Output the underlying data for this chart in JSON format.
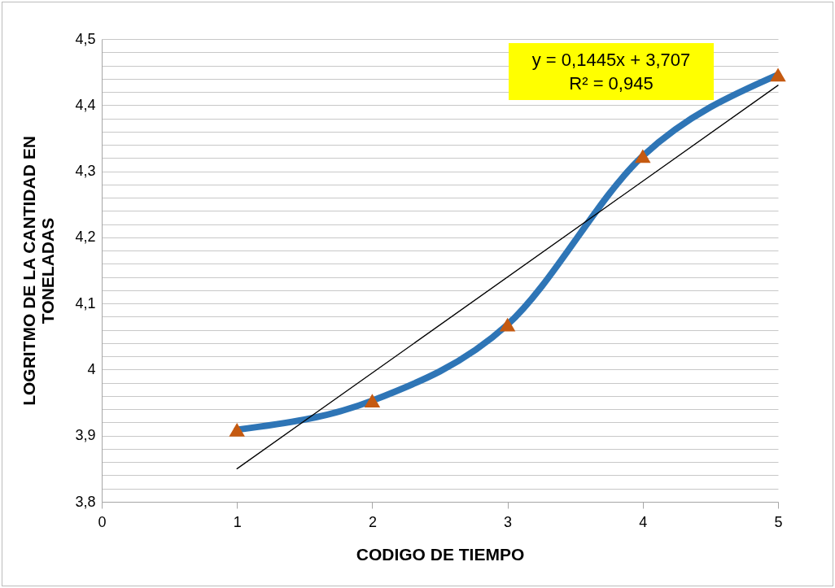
{
  "chart_data": {
    "type": "line",
    "xlabel": "CODIGO DE TIEMPO",
    "ylabel": "LOGRITMO DE LA CANTIDAD EN TONELADAS",
    "x": [
      1,
      2,
      3,
      4,
      5
    ],
    "series": [
      {
        "color": "#2e75b6",
        "values": [
          3.909,
          3.953,
          4.068,
          4.323,
          4.446
        ],
        "marker": "none"
      },
      {
        "type": "scatter",
        "color": "#c55a11",
        "values": [
          3.909,
          3.953,
          4.068,
          4.323,
          4.446
        ],
        "marker": "triangle"
      },
      {
        "type": "line",
        "color": "#000000",
        "x": [
          1,
          5
        ],
        "values": [
          3.85,
          4.43
        ],
        "marker": "none"
      }
    ],
    "annotations": [
      "y = 0,1445x + 3,707",
      "R² = 0,945"
    ],
    "xlim": [
      0,
      5
    ],
    "xticks": [
      0,
      1,
      2,
      3,
      4,
      5
    ],
    "ylim": [
      3.8,
      4.5
    ],
    "yticks": [
      {
        "value": 3.8,
        "label": "3,8"
      },
      {
        "value": 3.82,
        "label": null
      },
      {
        "value": 3.84,
        "label": null
      },
      {
        "value": 3.86,
        "label": null
      },
      {
        "value": 3.88,
        "label": null
      },
      {
        "value": 3.9,
        "label": "3,9"
      },
      {
        "value": 3.92,
        "label": null
      },
      {
        "value": 3.94,
        "label": null
      },
      {
        "value": 3.96,
        "label": null
      },
      {
        "value": 3.98,
        "label": null
      },
      {
        "value": 4,
        "label": "4"
      },
      {
        "value": 4.02,
        "label": null
      },
      {
        "value": 4.04,
        "label": null
      },
      {
        "value": 4.06,
        "label": null
      },
      {
        "value": 4.08,
        "label": null
      },
      {
        "value": 4.1,
        "label": "4,1"
      },
      {
        "value": 4.12,
        "label": null
      },
      {
        "value": 4.14,
        "label": null
      },
      {
        "value": 4.16,
        "label": null
      },
      {
        "value": 4.18,
        "label": null
      },
      {
        "value": 4.2,
        "label": "4,2"
      },
      {
        "value": 4.22,
        "label": null
      },
      {
        "value": 4.24,
        "label": null
      },
      {
        "value": 4.26,
        "label": null
      },
      {
        "value": 4.28,
        "label": null
      },
      {
        "value": 4.3,
        "label": "4,3"
      },
      {
        "value": 4.32,
        "label": null
      },
      {
        "value": 4.34,
        "label": null
      },
      {
        "value": 4.36,
        "label": null
      },
      {
        "value": 4.38,
        "label": null
      },
      {
        "value": 4.4,
        "label": "4,4"
      },
      {
        "value": 4.42,
        "label": null
      },
      {
        "value": 4.44,
        "label": null
      },
      {
        "value": 4.46,
        "label": null
      },
      {
        "value": 4.48,
        "label": null
      },
      {
        "value": 4.5,
        "label": "4,5"
      }
    ],
    "grid": "y"
  }
}
